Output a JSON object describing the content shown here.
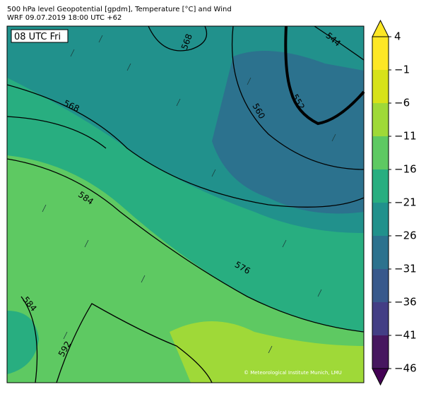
{
  "header": {
    "line1": "500 hPa level Geopotential [gpdm], Temperature [°C] and Wind",
    "line2": "WRF 09.07.2019 18:00 UTC +62"
  },
  "map": {
    "time_label": "08 UTC Fri",
    "credit": "© Meteorological Institute Munich, LMU",
    "contour_labels": [
      "568",
      "568",
      "560",
      "552",
      "544",
      "584",
      "584",
      "576",
      "592"
    ]
  },
  "colorbar": {
    "ticks": [
      {
        "value": 4,
        "label": "4"
      },
      {
        "value": -1,
        "label": "−1"
      },
      {
        "value": -6,
        "label": "−6"
      },
      {
        "value": -11,
        "label": "−11"
      },
      {
        "value": -16,
        "label": "−16"
      },
      {
        "value": -21,
        "label": "−21"
      },
      {
        "value": -26,
        "label": "−26"
      },
      {
        "value": -31,
        "label": "−31"
      },
      {
        "value": -36,
        "label": "−36"
      },
      {
        "value": -41,
        "label": "−41"
      },
      {
        "value": -46,
        "label": "−46"
      }
    ],
    "colors": [
      "#440154",
      "#46175f",
      "#433e85",
      "#38598c",
      "#2c728e",
      "#21918c",
      "#28ae80",
      "#5ec962",
      "#9fd938",
      "#d7e219",
      "#fde725",
      "#fde725"
    ]
  }
}
